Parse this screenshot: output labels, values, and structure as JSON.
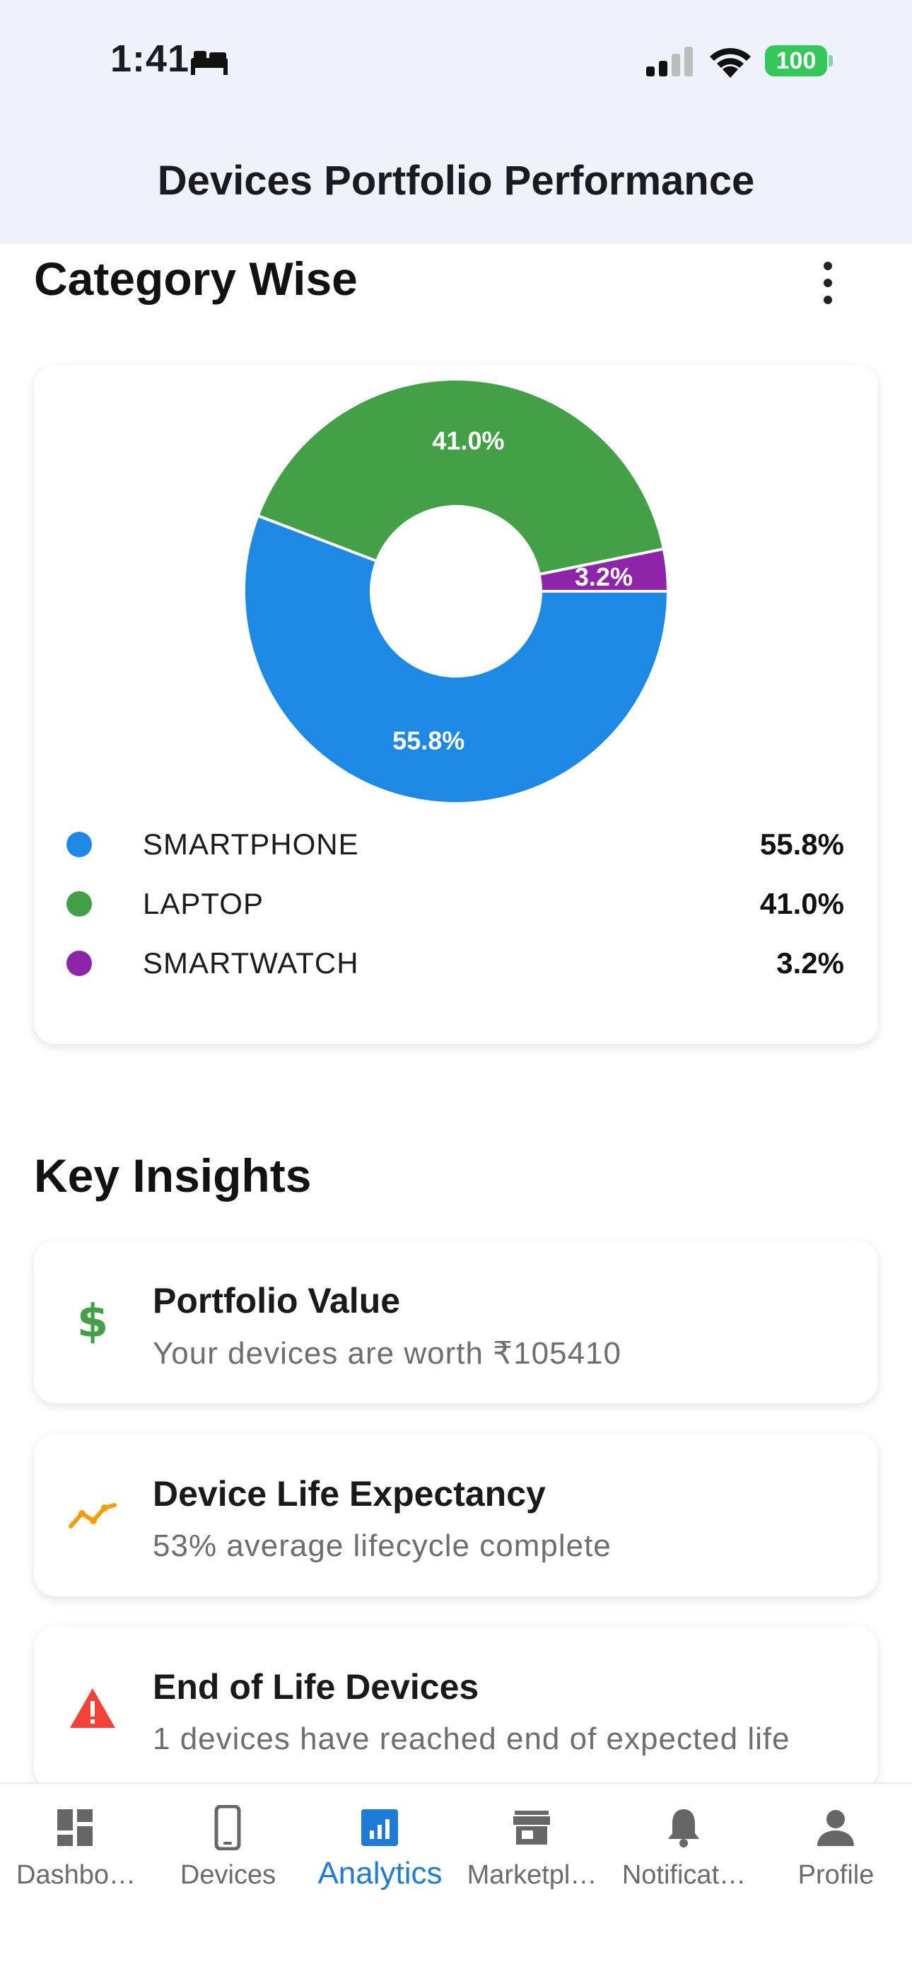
{
  "status_bar": {
    "time": "1:41",
    "battery": "100"
  },
  "app_bar": {
    "title": "Devices Portfolio Performance"
  },
  "category": {
    "title": "Category Wise",
    "legend": [
      {
        "label": "SMARTPHONE",
        "value": "55.8%",
        "color": "#1e88e5"
      },
      {
        "label": "LAPTOP",
        "value": "41.0%",
        "color": "#43a047"
      },
      {
        "label": "SMARTWATCH",
        "value": "3.2%",
        "color": "#8e24aa"
      }
    ]
  },
  "chart_data": {
    "type": "pie",
    "categories": [
      "SMARTPHONE",
      "LAPTOP",
      "SMARTWATCH"
    ],
    "values": [
      55.8,
      41.0,
      3.2
    ],
    "labels": [
      "55.8%",
      "41.0%",
      "3.2%"
    ],
    "colors": [
      "#1e88e5",
      "#43a047",
      "#8e24aa"
    ],
    "donut": true,
    "legend_position": "bottom"
  },
  "insights": {
    "title": "Key Insights",
    "items": [
      {
        "title": "Portfolio Value",
        "subtitle": "Your devices are worth ₹105410",
        "icon": "dollar-icon",
        "color": "#43a047"
      },
      {
        "title": "Device Life Expectancy",
        "subtitle": "53% average lifecycle complete",
        "icon": "trend-icon",
        "color": "#f59e0b"
      },
      {
        "title": "End of Life Devices",
        "subtitle": "1 devices have reached end of expected life",
        "icon": "warning-icon",
        "color": "#f44336"
      }
    ]
  },
  "nav": {
    "items": [
      {
        "label": "Dashbo…",
        "icon": "dashboard-icon"
      },
      {
        "label": "Devices",
        "icon": "phone-icon"
      },
      {
        "label": "Analytics",
        "icon": "analytics-icon"
      },
      {
        "label": "Marketpl…",
        "icon": "store-icon"
      },
      {
        "label": "Notificat…",
        "icon": "bell-icon"
      },
      {
        "label": "Profile",
        "icon": "person-icon"
      }
    ],
    "active_color": "#1e7bd8"
  }
}
